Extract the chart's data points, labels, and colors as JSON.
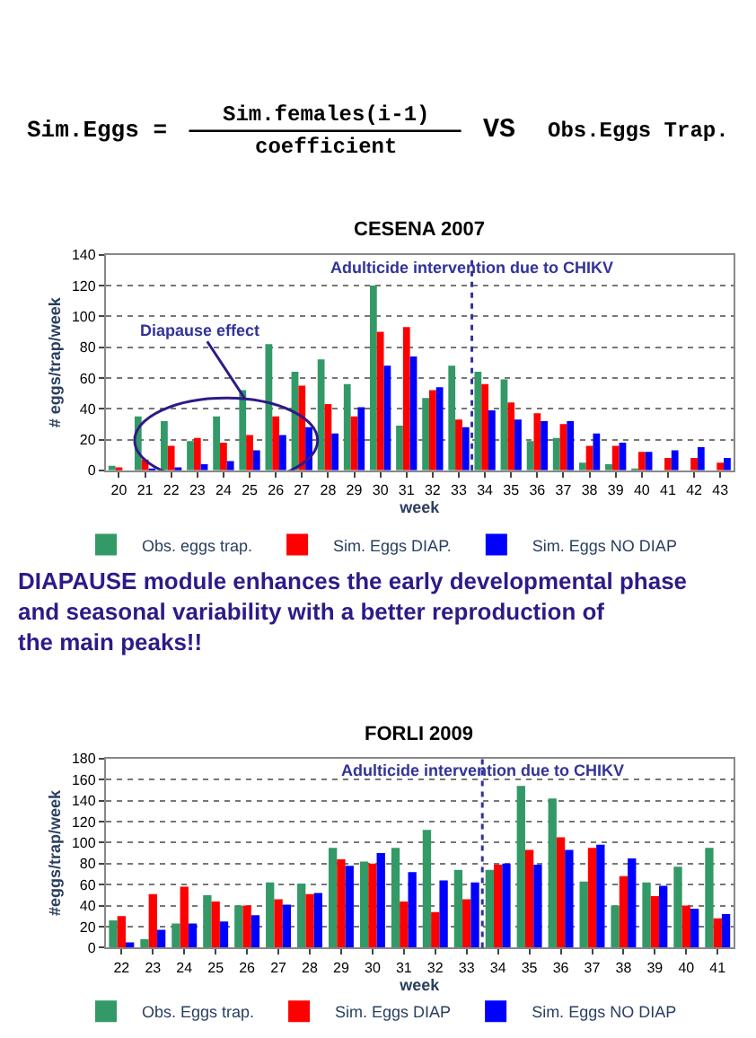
{
  "chart_data": [
    {
      "type": "other",
      "annotations": [
        "Sim.Eggs =",
        "Sim.females(i-1)",
        "coefficient",
        "VS",
        "Obs.Eggs Trap."
      ]
    },
    {
      "type": "bar",
      "title": "CESENA 2007",
      "xlabel": "week",
      "ylabel": "# eggs/trap/week",
      "x": [
        20,
        21,
        22,
        23,
        24,
        25,
        26,
        27,
        28,
        29,
        30,
        31,
        32,
        33,
        34,
        35,
        36,
        37,
        38,
        39,
        40,
        41,
        42,
        43
      ],
      "xlim": [
        19.5,
        43.5
      ],
      "xticks": [
        20,
        21,
        22,
        23,
        24,
        25,
        26,
        27,
        28,
        29,
        30,
        31,
        32,
        33,
        34,
        35,
        36,
        37,
        38,
        39,
        40,
        41,
        42,
        43
      ],
      "ylim": [
        0,
        140
      ],
      "yticks": [
        0,
        20,
        40,
        60,
        80,
        100,
        120,
        140
      ],
      "grid": "y",
      "legend": "bottom",
      "series": [
        {
          "name": "Obs. eggs trap.",
          "color": "#339966",
          "values": [
            3,
            35,
            32,
            19,
            35,
            52,
            82,
            64,
            72,
            56,
            120,
            29,
            47,
            68,
            64,
            59,
            19,
            21,
            5,
            4,
            1,
            0,
            0,
            0
          ]
        },
        {
          "name": "Sim. Eggs DIAP.",
          "color": "#ff0000",
          "values": [
            2,
            7,
            16,
            21,
            18,
            23,
            35,
            55,
            43,
            35,
            90,
            93,
            52,
            33,
            56,
            44,
            37,
            30,
            16,
            16,
            12,
            8,
            8,
            5
          ]
        },
        {
          "name": "Sim. Eggs NO DIAP",
          "color": "#0000ff",
          "values": [
            0,
            1,
            2,
            4,
            6,
            13,
            23,
            28,
            24,
            41,
            68,
            74,
            54,
            28,
            39,
            33,
            32,
            32,
            24,
            18,
            12,
            13,
            15,
            8
          ]
        }
      ],
      "ref_lines": [
        {
          "axis": "x",
          "value": 33.5,
          "label": "Adulticide intervention due to CHIKV",
          "color": "#333399",
          "line_style": "dotted"
        }
      ],
      "annotations": [
        {
          "text": "Diapause effect",
          "x": 24.8,
          "y": 47
        }
      ]
    },
    {
      "type": "other",
      "annotations": [
        "DIAPAUSE module enhances the early developmental phase and seasonal variability with a better reproduction of the main peaks!!"
      ]
    },
    {
      "type": "bar",
      "title": "FORLI 2009",
      "xlabel": "week",
      "ylabel": "#eggs/trap/week",
      "x": [
        22,
        23,
        24,
        25,
        26,
        27,
        28,
        29,
        30,
        31,
        32,
        33,
        34,
        35,
        36,
        37,
        38,
        39,
        40,
        41
      ],
      "xlim": [
        21.5,
        41.5
      ],
      "xticks": [
        22,
        23,
        24,
        25,
        26,
        27,
        28,
        29,
        30,
        31,
        32,
        33,
        34,
        35,
        36,
        37,
        38,
        39,
        40,
        41
      ],
      "ylim": [
        0,
        180
      ],
      "yticks": [
        0,
        20,
        40,
        60,
        80,
        100,
        120,
        140,
        160,
        180
      ],
      "grid": "y",
      "legend": "bottom",
      "series": [
        {
          "name": "Obs. Eggs trap.",
          "color": "#339966",
          "values": [
            26,
            8,
            23,
            50,
            40,
            62,
            61,
            95,
            82,
            95,
            112,
            74,
            74,
            154,
            142,
            63,
            40,
            62,
            77,
            95
          ]
        },
        {
          "name": "Sim. Eggs DIAP",
          "color": "#ff0000",
          "values": [
            30,
            51,
            58,
            44,
            40,
            46,
            51,
            84,
            80,
            44,
            34,
            46,
            79,
            93,
            105,
            95,
            68,
            49,
            40,
            28
          ]
        },
        {
          "name": "Sim. Eggs NO DIAP",
          "color": "#0000ff",
          "values": [
            5,
            17,
            23,
            25,
            31,
            41,
            52,
            78,
            90,
            72,
            64,
            62,
            80,
            79,
            93,
            98,
            85,
            59,
            37,
            32
          ]
        }
      ],
      "ref_lines": [
        {
          "axis": "x",
          "value": 33.5,
          "label": "Adulticide intervention due to CHIKV",
          "color": "#333399",
          "line_style": "dotted"
        }
      ]
    }
  ]
}
